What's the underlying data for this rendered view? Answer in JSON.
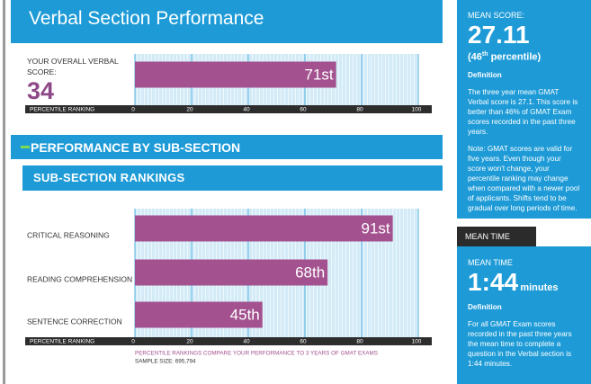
{
  "header": {
    "title": "Verbal Section Performance"
  },
  "overall_score": 34,
  "section_title": "PERFORMANCE BY SUB-SECTION",
  "chart_data": [
    {
      "type": "bar",
      "orientation": "horizontal",
      "categories": [
        "YOUR OVERALL VERBAL SCORE:"
      ],
      "values": [
        71
      ],
      "value_labels": [
        "71st"
      ],
      "xlabel": "PERCENTILE RANKING",
      "xlim": [
        0,
        100
      ],
      "xticks": [
        0,
        20,
        40,
        60,
        80,
        100
      ],
      "color": "#a3528f",
      "grid": true
    },
    {
      "type": "bar",
      "orientation": "horizontal",
      "title": "SUB-SECTION RANKINGS",
      "categories": [
        "CRITICAL REASONING",
        "READING COMPREHENSION",
        "SENTENCE CORRECTION"
      ],
      "values": [
        91,
        68,
        45
      ],
      "value_labels": [
        "91st",
        "68th",
        "45th"
      ],
      "xlabel": "PERCENTILE RANKING",
      "xlim": [
        0,
        100
      ],
      "xticks": [
        0,
        20,
        40,
        60,
        80,
        100
      ],
      "color": "#a3528f",
      "grid": true,
      "note": "PERCENTILE RANKINGS COMPARE YOUR PERFORMANCE TO 3 YEARS OF GMAT EXAMS",
      "sample_size": "SAMPLE SIZE: 695,794"
    }
  ],
  "mean_score": {
    "label": "MEAN SCORE:",
    "value": "27.11",
    "percentile_a": "(46",
    "percentile_sup": "th",
    "percentile_b": " percentile)",
    "definition_heading": "Definition",
    "definition": "The three year mean GMAT Verbal score is 27.1. This score is better than 46% of GMAT Exam scores recorded in the past three years.",
    "note": "Note: GMAT scores are valid for five years. Even though your score won't change, your percentile ranking may change when compared with a newer pool of applicants. Shifts tend to be gradual over long periods of time."
  },
  "mean_time": {
    "tab": "MEAN TIME",
    "label": "MEAN TIME",
    "value": "1:44",
    "unit": "minutes",
    "definition_heading": "Definition",
    "definition": "For all GMAT Exam scores recorded in the past three years the mean time to complete a question in the Verbal section is 1:44 minutes."
  }
}
